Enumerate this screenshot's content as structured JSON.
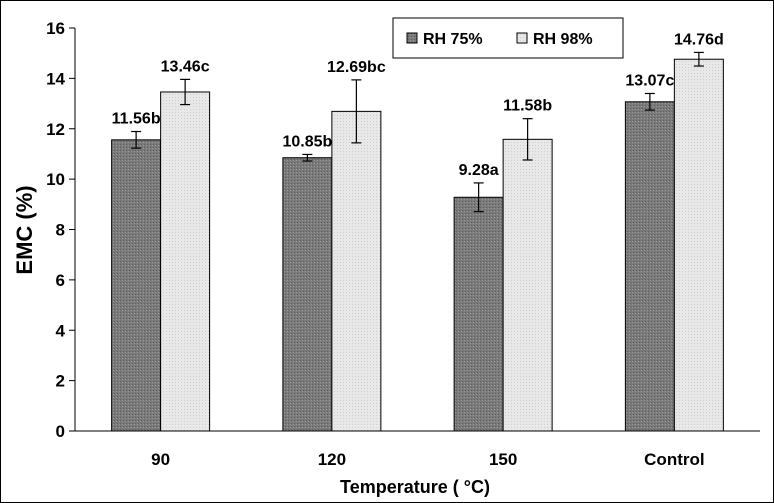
{
  "chart_data": {
    "type": "bar",
    "title": "",
    "xlabel": "Temperature ( °C)",
    "ylabel": "EMC (%)",
    "ylim": [
      0,
      16
    ],
    "yticks": [
      0,
      2,
      4,
      6,
      8,
      10,
      12,
      14,
      16
    ],
    "categories": [
      "90",
      "120",
      "150",
      "Control"
    ],
    "legend_position": "top-center",
    "grid": false,
    "series": [
      {
        "name": "RH 75%",
        "color": "#808080",
        "pattern": "dotted-gray",
        "values": [
          11.56,
          10.85,
          9.28,
          13.07
        ],
        "errors": [
          0.33,
          0.13,
          0.57,
          0.33
        ],
        "labels": [
          "11.56b",
          "10.85b",
          "9.28a",
          "13.07c"
        ]
      },
      {
        "name": "RH 98%",
        "color": "#e6e6e6",
        "pattern": "dotted-light",
        "values": [
          13.46,
          12.69,
          11.58,
          14.76
        ],
        "errors": [
          0.5,
          1.25,
          0.82,
          0.27
        ],
        "labels": [
          "13.46c",
          "12.69bc",
          "11.58b",
          "14.76d"
        ]
      }
    ]
  }
}
